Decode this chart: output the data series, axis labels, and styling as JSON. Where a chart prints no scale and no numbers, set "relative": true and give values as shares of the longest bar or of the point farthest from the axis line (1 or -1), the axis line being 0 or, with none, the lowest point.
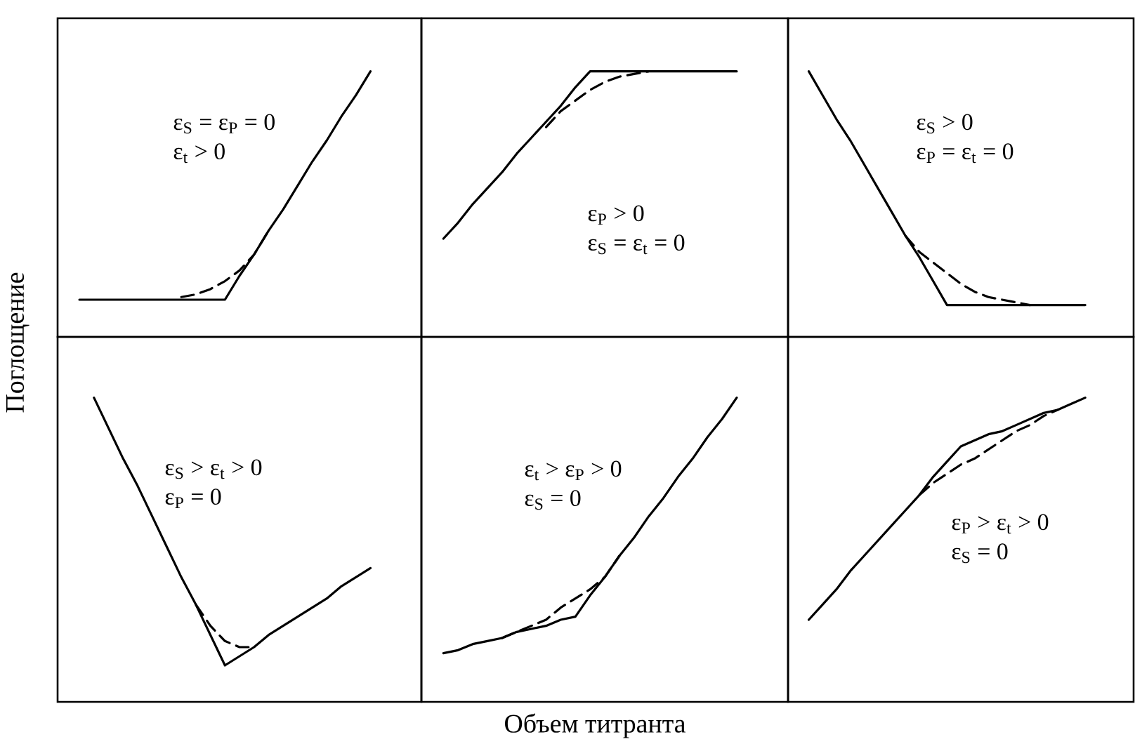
{
  "chart_data": [
    {
      "type": "line",
      "relative": true,
      "ylabel": "Поглощение",
      "categories": [
        null,
        null,
        null,
        null,
        null,
        null,
        null,
        null,
        null,
        null,
        null,
        null,
        null,
        null,
        null,
        null,
        null,
        null,
        null,
        null,
        null
      ],
      "series": [
        {
          "color": "#000000",
          "line_style": "solid",
          "values": [
            0.14,
            0.14,
            0.14,
            0.14,
            0.14,
            0.14,
            0.14,
            0.14,
            0.14,
            0.14,
            0.14,
            0.23,
            0.31,
            0.4,
            0.48,
            0.57,
            0.66,
            0.74,
            0.83,
            0.91,
            1
          ]
        },
        {
          "color": "#000000",
          "line_style": "dashed",
          "values": [
            null,
            null,
            null,
            null,
            null,
            null,
            null,
            0.15,
            0.16,
            0.18,
            0.21,
            0.25,
            0.31,
            0.4,
            null,
            null,
            null,
            null,
            null,
            null,
            null
          ]
        }
      ],
      "annotations": [
        "ε$_{S}$ = ε$_{P}$ = 0",
        "ε$_{t}$ > 0"
      ]
    },
    {
      "type": "line",
      "relative": true,
      "categories": [
        null,
        null,
        null,
        null,
        null,
        null,
        null,
        null,
        null,
        null,
        null,
        null,
        null,
        null,
        null,
        null,
        null,
        null,
        null,
        null,
        null
      ],
      "series": [
        {
          "color": "#000000",
          "line_style": "solid",
          "values": [
            0.37,
            0.43,
            0.5,
            0.56,
            0.62,
            0.69,
            0.75,
            0.81,
            0.87,
            0.94,
            1,
            1,
            1,
            1,
            1,
            1,
            1,
            1,
            1,
            1,
            1
          ]
        },
        {
          "color": "#000000",
          "line_style": "dashed",
          "values": [
            null,
            null,
            null,
            null,
            null,
            null,
            null,
            0.79,
            0.85,
            0.89,
            0.93,
            0.96,
            0.98,
            0.99,
            1,
            null,
            null,
            null,
            null,
            null,
            null
          ]
        }
      ],
      "annotations": [
        "ε$_{P}$ > 0",
        "ε$_{S}$ = ε$_{t}$ = 0"
      ]
    },
    {
      "type": "line",
      "relative": true,
      "categories": [
        null,
        null,
        null,
        null,
        null,
        null,
        null,
        null,
        null,
        null,
        null,
        null,
        null,
        null,
        null,
        null,
        null,
        null,
        null,
        null,
        null
      ],
      "series": [
        {
          "color": "#000000",
          "line_style": "solid",
          "values": [
            1,
            0.91,
            0.82,
            0.74,
            0.65,
            0.56,
            0.47,
            0.38,
            0.3,
            0.21,
            0.12,
            0.12,
            0.12,
            0.12,
            0.12,
            0.12,
            0.12,
            0.12,
            0.12,
            0.12,
            0.12
          ]
        },
        {
          "color": "#000000",
          "line_style": "dashed",
          "values": [
            null,
            null,
            null,
            null,
            null,
            null,
            null,
            0.38,
            0.32,
            0.28,
            0.24,
            0.2,
            0.17,
            0.15,
            0.14,
            0.13,
            0.12,
            null,
            null,
            null,
            null
          ]
        }
      ],
      "annotations": [
        "ε$_{S}$ > 0",
        "ε$_{P}$ = ε$_{t}$ = 0"
      ]
    },
    {
      "type": "line",
      "relative": true,
      "categories": [
        null,
        null,
        null,
        null,
        null,
        null,
        null,
        null,
        null,
        null,
        null,
        null,
        null,
        null,
        null,
        null,
        null,
        null,
        null,
        null,
        null
      ],
      "series": [
        {
          "color": "#000000",
          "line_style": "solid",
          "values": [
            null,
            1,
            0.9,
            0.8,
            0.71,
            0.61,
            0.51,
            0.41,
            0.32,
            0.22,
            0.12,
            0.15,
            0.18,
            0.22,
            0.25,
            0.28,
            0.31,
            0.34,
            0.38,
            0.41,
            0.44
          ]
        },
        {
          "color": "#000000",
          "line_style": "dashed",
          "values": [
            null,
            null,
            null,
            null,
            null,
            null,
            null,
            null,
            0.32,
            0.25,
            0.2,
            0.18,
            0.18,
            null,
            null,
            null,
            null,
            null,
            null,
            null,
            null
          ]
        }
      ],
      "annotations": [
        "ε$_{S}$ > ε$_{t}$ > 0",
        "ε$_{P}$ = 0"
      ]
    },
    {
      "type": "line",
      "relative": true,
      "xlabel": "Объем титранта",
      "categories": [
        null,
        null,
        null,
        null,
        null,
        null,
        null,
        null,
        null,
        null,
        null,
        null,
        null,
        null,
        null,
        null,
        null,
        null,
        null,
        null,
        null
      ],
      "series": [
        {
          "color": "#000000",
          "line_style": "solid",
          "values": [
            0.16,
            0.17,
            0.19,
            0.2,
            0.21,
            0.23,
            0.24,
            0.25,
            0.27,
            0.28,
            0.35,
            0.41,
            0.48,
            0.54,
            0.61,
            0.67,
            0.74,
            0.8,
            0.87,
            0.93,
            1
          ]
        },
        {
          "color": "#000000",
          "line_style": "dashed",
          "values": [
            null,
            null,
            null,
            null,
            0.21,
            0.23,
            0.25,
            0.27,
            0.31,
            0.34,
            0.37,
            0.41,
            0.48,
            null,
            null,
            null,
            null,
            null,
            null,
            null,
            null
          ]
        }
      ],
      "annotations": [
        "ε$_{t}$ > ε$_{P}$ > 0",
        "ε$_{S}$ = 0"
      ]
    },
    {
      "type": "line",
      "relative": true,
      "categories": [
        null,
        null,
        null,
        null,
        null,
        null,
        null,
        null,
        null,
        null,
        null,
        null,
        null,
        null,
        null,
        null,
        null,
        null,
        null,
        null,
        null
      ],
      "series": [
        {
          "color": "#000000",
          "line_style": "solid",
          "values": [
            0.27,
            0.32,
            0.37,
            0.43,
            0.48,
            0.53,
            0.58,
            0.63,
            0.68,
            0.74,
            0.79,
            0.84,
            0.86,
            0.88,
            0.89,
            0.91,
            0.93,
            0.95,
            0.96,
            0.98,
            1
          ]
        },
        {
          "color": "#000000",
          "line_style": "dashed",
          "values": [
            null,
            null,
            null,
            null,
            null,
            null,
            null,
            null,
            0.68,
            0.72,
            0.75,
            0.78,
            0.8,
            0.83,
            0.86,
            0.89,
            0.91,
            0.94,
            0.96,
            null,
            null
          ]
        }
      ],
      "annotations": [
        "ε$_{P}$ > ε$_{t}$ > 0",
        "ε$_{S}$ = 0"
      ]
    }
  ]
}
